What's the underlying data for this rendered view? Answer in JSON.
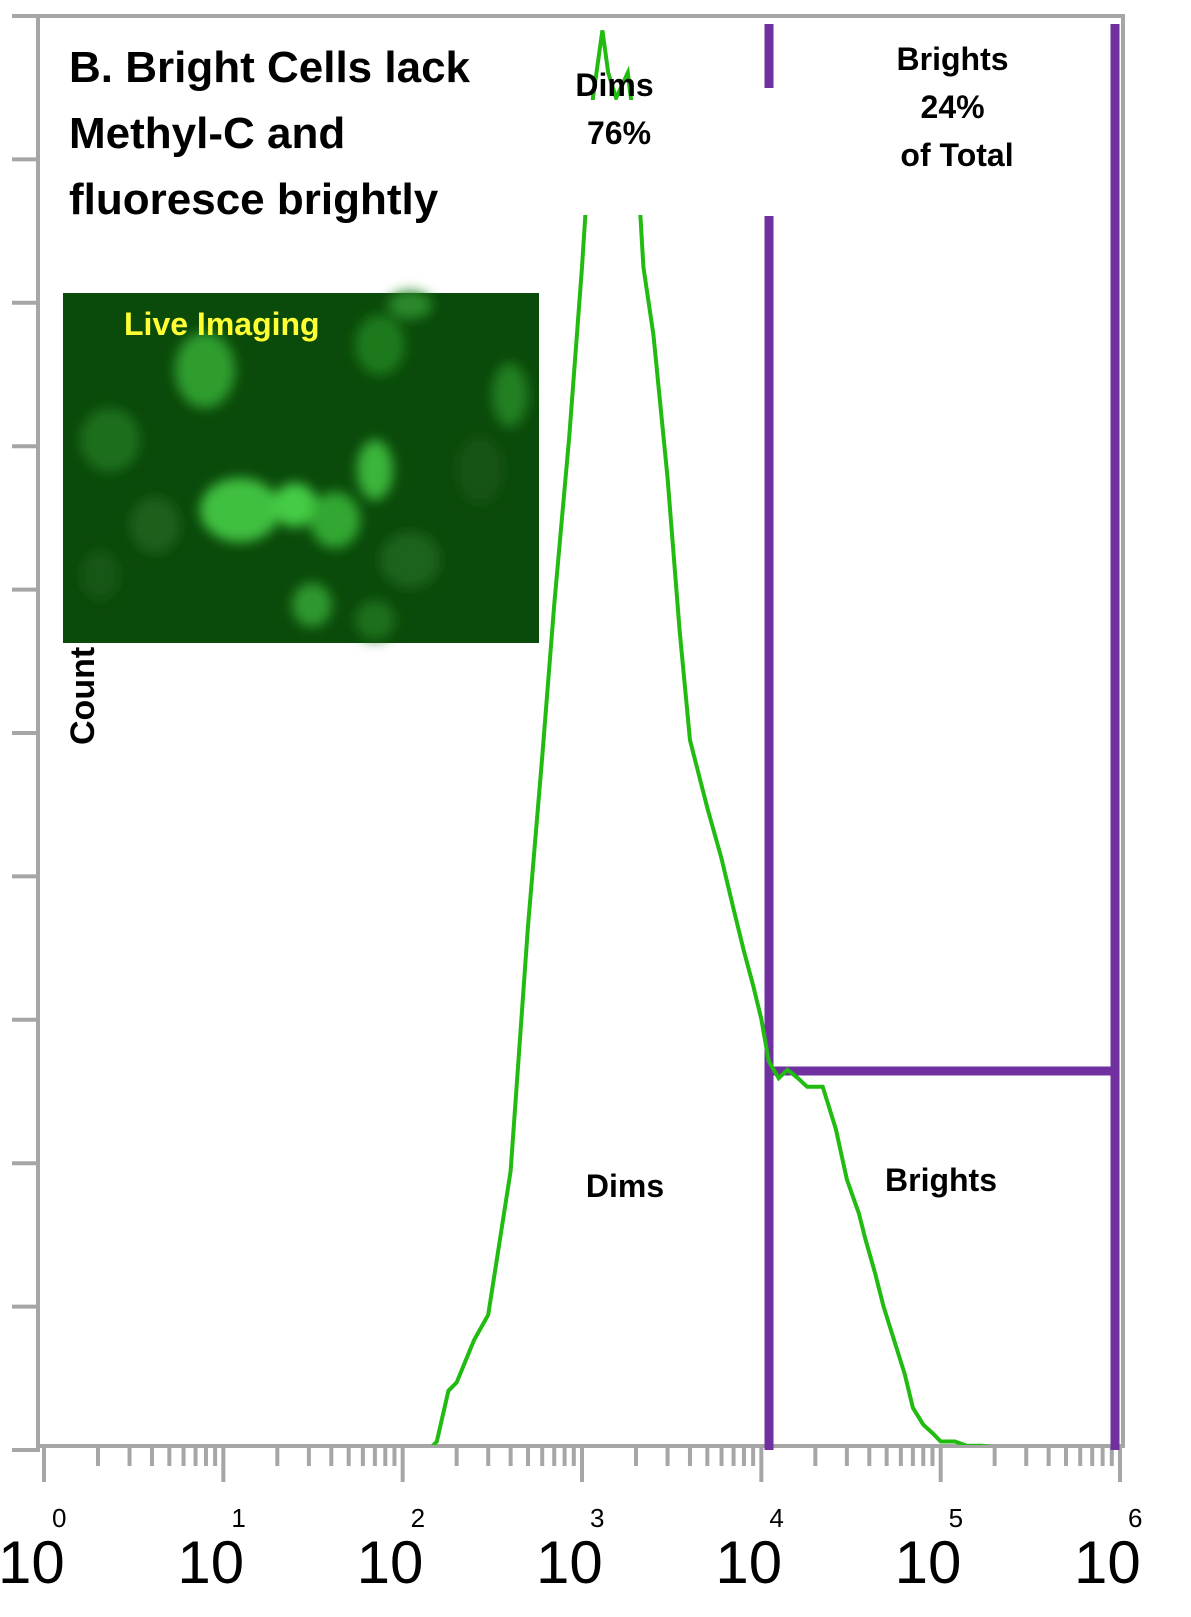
{
  "chart_data": {
    "type": "area",
    "title_lines": [
      "B. Bright Cells lack",
      "Methyl-C and",
      "fluoresce brightly"
    ],
    "ylabel": "Count",
    "xscale": "log",
    "xlim": [
      1,
      1000000
    ],
    "grid": false,
    "x_tick_labels": [
      {
        "base": "10",
        "exp": "0"
      },
      {
        "base": "10",
        "exp": "1"
      },
      {
        "base": "10",
        "exp": "2"
      },
      {
        "base": "10",
        "exp": "3"
      },
      {
        "base": "10",
        "exp": "4"
      },
      {
        "base": "10",
        "exp": "5"
      },
      {
        "base": "10",
        "exp": "6"
      }
    ],
    "series": [
      {
        "color": "#22bb11",
        "x": [
          1,
          140,
          155,
          180,
          200,
          250,
          300,
          400,
          500,
          600,
          700,
          850,
          1000,
          1150,
          1300,
          1400,
          1550,
          1800,
          2000,
          2200,
          2500,
          3000,
          3500,
          4000,
          5000,
          6000,
          7000,
          8000,
          9000,
          10000,
          11000,
          12500,
          14000,
          16000,
          18000,
          20000,
          22000,
          26000,
          30000,
          35000,
          38000,
          43000,
          48000,
          55000,
          63000,
          70000,
          80000,
          90000,
          100000,
          120000,
          140000,
          170000,
          200000,
          250000,
          300000,
          350000
        ],
        "y": [
          0,
          0,
          1,
          7,
          8,
          13,
          16,
          33,
          62,
          82,
          100,
          120,
          140,
          160,
          168,
          163,
          160,
          163,
          155,
          140,
          132,
          115,
          97,
          84,
          76,
          70,
          64,
          59,
          55,
          51,
          46,
          44,
          45,
          44,
          43,
          43,
          43,
          38,
          32,
          28,
          25,
          21,
          17,
          13,
          9,
          5,
          3,
          2,
          1,
          1,
          0.5,
          0.5,
          0.3,
          0.2,
          0.1,
          0
        ],
        "peak_clipped": true
      }
    ],
    "gates": [
      {
        "name": "Dims",
        "percent_label": "76%"
      },
      {
        "name": "Brights",
        "percent_label": "24%",
        "extra_label": "of Total"
      }
    ],
    "gate_color": "#7030a0",
    "inset": {
      "title": "Live Imaging",
      "title_color": "#ffff33",
      "background": "#0a4a0a"
    }
  }
}
